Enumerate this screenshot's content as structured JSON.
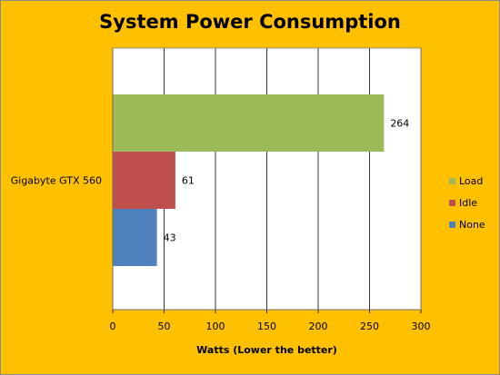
{
  "chart_data": {
    "type": "bar",
    "orientation": "horizontal",
    "title": "System Power Consumption",
    "xlabel": "Watts (Lower the better)",
    "ylabel": "",
    "categories": [
      "Gigabyte GTX 560"
    ],
    "xlim": [
      0,
      300
    ],
    "x_ticks": [
      0,
      50,
      100,
      150,
      200,
      250,
      300
    ],
    "grid": "vertical",
    "legend_position": "right",
    "series": [
      {
        "name": "Load",
        "values": [
          264
        ],
        "color": "#9bbb59"
      },
      {
        "name": "Idle",
        "values": [
          61
        ],
        "color": "#c0504d"
      },
      {
        "name": "None",
        "values": [
          43
        ],
        "color": "#4f81bd"
      }
    ],
    "colors": {
      "frame_background": "#ffc000",
      "plot_background": "#ffffff"
    }
  }
}
